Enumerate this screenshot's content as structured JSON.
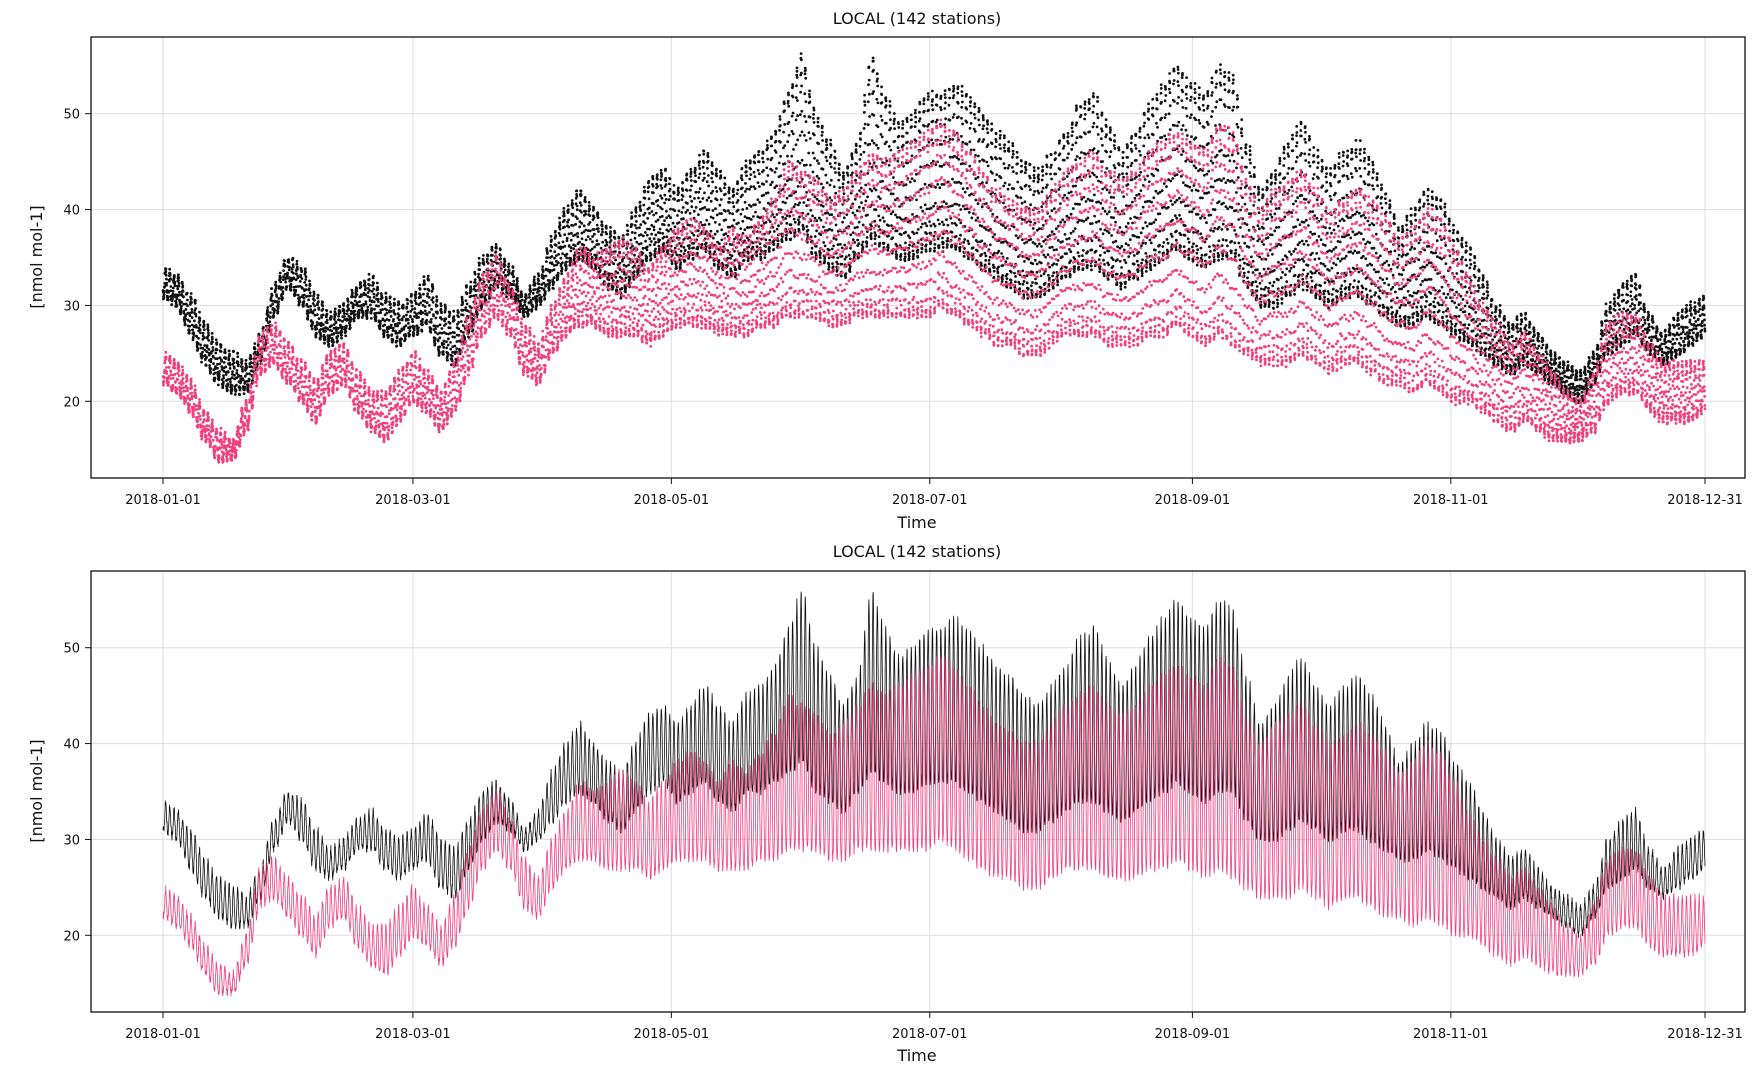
{
  "chart_data": [
    {
      "type": "scatter",
      "title": "LOCAL (142 stations)",
      "xlabel": "Time",
      "ylabel": "[nmol mol-1]",
      "x_range": [
        "2018-01-01",
        "2018-12-31"
      ],
      "ylim": [
        12,
        58
      ],
      "x_ticks": [
        "2018-01-01",
        "2018-03-01",
        "2018-05-01",
        "2018-07-01",
        "2018-09-01",
        "2018-11-01",
        "2018-12-31"
      ],
      "y_ticks": [
        20,
        30,
        40,
        50
      ],
      "grid": true,
      "sampling": "hourly",
      "series": [
        {
          "color": "#111111",
          "daily_max": [
            34,
            33,
            31,
            28,
            26,
            25,
            24,
            27,
            32,
            35,
            34,
            31,
            29,
            30,
            32,
            33,
            31,
            30,
            31,
            33,
            30,
            29,
            32,
            35,
            36,
            34,
            31,
            33,
            37,
            40,
            42,
            40,
            38,
            37,
            40,
            43,
            44,
            42,
            44,
            46,
            44,
            42,
            45,
            46,
            48,
            52,
            56,
            50,
            47,
            44,
            47,
            56,
            52,
            49,
            50,
            52,
            52,
            53,
            52,
            50,
            48,
            47,
            45,
            44,
            46,
            48,
            51,
            52,
            49,
            46,
            48,
            51,
            53,
            55,
            53,
            52,
            55,
            54,
            47,
            42,
            44,
            47,
            49,
            46,
            44,
            46,
            47,
            45,
            42,
            38,
            40,
            42,
            41,
            38,
            36,
            33,
            30,
            28,
            29,
            27,
            25,
            24,
            23,
            25,
            30,
            32,
            33,
            29,
            27,
            29,
            30,
            31
          ],
          "daily_min": [
            31,
            30,
            27,
            24,
            22,
            21,
            21,
            24,
            29,
            32,
            30,
            27,
            26,
            27,
            29,
            29,
            27,
            26,
            27,
            28,
            25,
            24,
            27,
            30,
            32,
            31,
            29,
            30,
            32,
            34,
            35,
            34,
            32,
            31,
            33,
            35,
            36,
            34,
            35,
            36,
            34,
            33,
            35,
            35,
            36,
            37,
            38,
            35,
            34,
            33,
            35,
            37,
            36,
            35,
            35,
            36,
            36,
            36,
            35,
            34,
            33,
            32,
            31,
            31,
            32,
            33,
            34,
            34,
            33,
            32,
            33,
            34,
            35,
            36,
            35,
            34,
            35,
            35,
            32,
            30,
            30,
            31,
            32,
            31,
            30,
            31,
            31,
            30,
            29,
            28,
            28,
            29,
            28,
            27,
            26,
            25,
            24,
            23,
            24,
            23,
            22,
            21,
            20,
            22,
            25,
            26,
            27,
            25,
            24,
            25,
            26,
            27
          ]
        },
        {
          "color": "#f03f7c",
          "daily_max": [
            25,
            24,
            22,
            19,
            17,
            16,
            20,
            27,
            28,
            26,
            24,
            22,
            25,
            26,
            23,
            21,
            21,
            23,
            25,
            23,
            21,
            24,
            29,
            33,
            35,
            32,
            28,
            26,
            30,
            33,
            36,
            35,
            36,
            37,
            36,
            34,
            36,
            38,
            39,
            38,
            36,
            38,
            37,
            39,
            41,
            45,
            44,
            43,
            41,
            42,
            44,
            46,
            45,
            46,
            47,
            48,
            49,
            48,
            46,
            44,
            42,
            41,
            40,
            40,
            42,
            44,
            45,
            46,
            44,
            43,
            44,
            46,
            47,
            48,
            47,
            46,
            49,
            48,
            43,
            40,
            42,
            43,
            44,
            42,
            40,
            41,
            42,
            41,
            39,
            37,
            38,
            40,
            39,
            36,
            33,
            30,
            28,
            26,
            27,
            25,
            23,
            21,
            20,
            23,
            28,
            29,
            29,
            26,
            24,
            24,
            24,
            24
          ],
          "daily_min": [
            22,
            21,
            19,
            16,
            14,
            14,
            17,
            23,
            24,
            22,
            20,
            18,
            21,
            22,
            19,
            17,
            16,
            18,
            20,
            19,
            17,
            19,
            23,
            27,
            29,
            27,
            23,
            22,
            25,
            27,
            28,
            28,
            27,
            27,
            27,
            26,
            27,
            28,
            28,
            28,
            27,
            27,
            27,
            28,
            28,
            29,
            29,
            29,
            28,
            28,
            29,
            29,
            29,
            29,
            29,
            29,
            30,
            29,
            28,
            27,
            26,
            26,
            25,
            25,
            26,
            27,
            27,
            27,
            26,
            26,
            26,
            27,
            27,
            28,
            27,
            26,
            27,
            26,
            25,
            24,
            24,
            24,
            25,
            24,
            23,
            24,
            24,
            23,
            22,
            22,
            21,
            22,
            21,
            20,
            20,
            19,
            18,
            17,
            18,
            17,
            16,
            16,
            16,
            17,
            20,
            21,
            21,
            19,
            18,
            18,
            18,
            19
          ]
        }
      ]
    },
    {
      "type": "line",
      "title": "LOCAL (142 stations)",
      "xlabel": "Time",
      "ylabel": "[nmol mol-1]",
      "x_range": [
        "2018-01-01",
        "2018-12-31"
      ],
      "ylim": [
        12,
        58
      ],
      "x_ticks": [
        "2018-01-01",
        "2018-03-01",
        "2018-05-01",
        "2018-07-01",
        "2018-09-01",
        "2018-11-01",
        "2018-12-31"
      ],
      "y_ticks": [
        20,
        30,
        40,
        50
      ],
      "grid": true,
      "sampling": "hourly",
      "series": [
        {
          "color": "#111111",
          "daily_max": [
            34,
            33,
            31,
            28,
            26,
            25,
            24,
            27,
            32,
            35,
            34,
            31,
            29,
            30,
            32,
            33,
            31,
            30,
            31,
            33,
            30,
            29,
            32,
            35,
            36,
            34,
            31,
            33,
            37,
            40,
            42,
            40,
            38,
            37,
            40,
            43,
            44,
            42,
            44,
            46,
            44,
            42,
            45,
            46,
            48,
            52,
            56,
            50,
            47,
            44,
            47,
            56,
            52,
            49,
            50,
            52,
            52,
            53,
            52,
            50,
            48,
            47,
            45,
            44,
            46,
            48,
            51,
            52,
            49,
            46,
            48,
            51,
            53,
            55,
            53,
            52,
            55,
            54,
            47,
            42,
            44,
            47,
            49,
            46,
            44,
            46,
            47,
            45,
            42,
            38,
            40,
            42,
            41,
            38,
            36,
            33,
            30,
            28,
            29,
            27,
            25,
            24,
            23,
            25,
            30,
            32,
            33,
            29,
            27,
            29,
            30,
            31
          ],
          "daily_min": [
            31,
            30,
            27,
            24,
            22,
            21,
            21,
            24,
            29,
            32,
            30,
            27,
            26,
            27,
            29,
            29,
            27,
            26,
            27,
            28,
            25,
            24,
            27,
            30,
            32,
            31,
            29,
            30,
            32,
            34,
            35,
            34,
            32,
            31,
            33,
            35,
            36,
            34,
            35,
            36,
            34,
            33,
            35,
            35,
            36,
            37,
            38,
            35,
            34,
            33,
            35,
            37,
            36,
            35,
            35,
            36,
            36,
            36,
            35,
            34,
            33,
            32,
            31,
            31,
            32,
            33,
            34,
            34,
            33,
            32,
            33,
            34,
            35,
            36,
            35,
            34,
            35,
            35,
            32,
            30,
            30,
            31,
            32,
            31,
            30,
            31,
            31,
            30,
            29,
            28,
            28,
            29,
            28,
            27,
            26,
            25,
            24,
            23,
            24,
            23,
            22,
            21,
            20,
            22,
            25,
            26,
            27,
            25,
            24,
            25,
            26,
            27
          ]
        },
        {
          "color": "#f03f7c",
          "daily_max": [
            25,
            24,
            22,
            19,
            17,
            16,
            20,
            27,
            28,
            26,
            24,
            22,
            25,
            26,
            23,
            21,
            21,
            23,
            25,
            23,
            21,
            24,
            29,
            33,
            35,
            32,
            28,
            26,
            30,
            33,
            36,
            35,
            36,
            37,
            36,
            34,
            36,
            38,
            39,
            38,
            36,
            38,
            37,
            39,
            41,
            45,
            44,
            43,
            41,
            42,
            44,
            46,
            45,
            46,
            47,
            48,
            49,
            48,
            46,
            44,
            42,
            41,
            40,
            40,
            42,
            44,
            45,
            46,
            44,
            43,
            44,
            46,
            47,
            48,
            47,
            46,
            49,
            48,
            43,
            40,
            42,
            43,
            44,
            42,
            40,
            41,
            42,
            41,
            39,
            37,
            38,
            40,
            39,
            36,
            33,
            30,
            28,
            26,
            27,
            25,
            23,
            21,
            20,
            23,
            28,
            29,
            29,
            26,
            24,
            24,
            24,
            24
          ],
          "daily_min": [
            22,
            21,
            19,
            16,
            14,
            14,
            17,
            23,
            24,
            22,
            20,
            18,
            21,
            22,
            19,
            17,
            16,
            18,
            20,
            19,
            17,
            19,
            23,
            27,
            29,
            27,
            23,
            22,
            25,
            27,
            28,
            28,
            27,
            27,
            27,
            26,
            27,
            28,
            28,
            28,
            27,
            27,
            27,
            28,
            28,
            29,
            29,
            29,
            28,
            28,
            29,
            29,
            29,
            29,
            29,
            29,
            30,
            29,
            28,
            27,
            26,
            26,
            25,
            25,
            26,
            27,
            27,
            27,
            26,
            26,
            26,
            27,
            27,
            28,
            27,
            26,
            27,
            26,
            25,
            24,
            24,
            24,
            25,
            24,
            23,
            24,
            24,
            23,
            22,
            22,
            21,
            22,
            21,
            20,
            20,
            19,
            18,
            17,
            18,
            17,
            16,
            16,
            16,
            17,
            20,
            21,
            21,
            19,
            18,
            18,
            18,
            19
          ]
        }
      ]
    }
  ]
}
